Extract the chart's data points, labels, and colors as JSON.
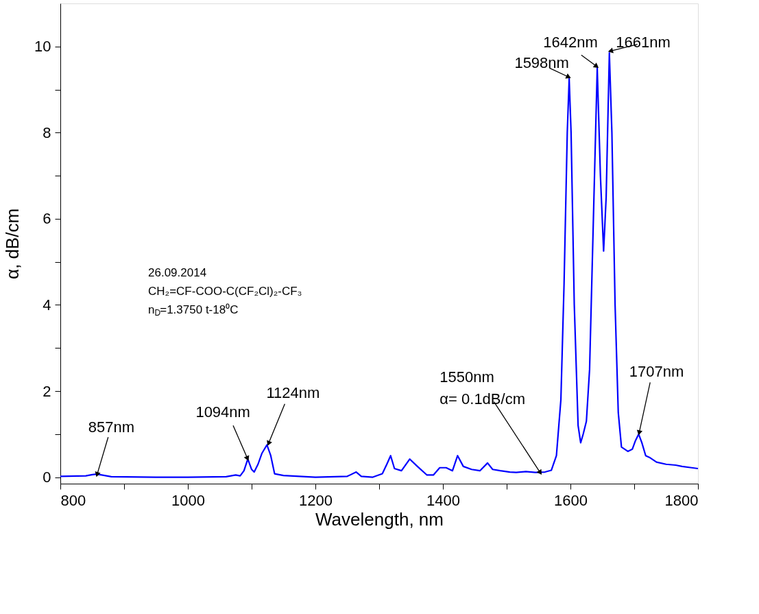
{
  "chart_data": {
    "type": "line",
    "xlabel": "Wavelength, nm",
    "ylabel": "α, dB/cm",
    "x": [
      800,
      840,
      850,
      857,
      865,
      880,
      950,
      1000,
      1060,
      1075,
      1082,
      1088,
      1094,
      1100,
      1104,
      1110,
      1116,
      1124,
      1130,
      1136,
      1150,
      1200,
      1250,
      1264,
      1272,
      1290,
      1305,
      1312,
      1318,
      1324,
      1335,
      1348,
      1360,
      1375,
      1385,
      1395,
      1405,
      1415,
      1423,
      1432,
      1445,
      1458,
      1470,
      1478,
      1490,
      1505,
      1515,
      1530,
      1545,
      1560,
      1570,
      1578,
      1585,
      1590,
      1595,
      1598,
      1601,
      1606,
      1612,
      1616,
      1620,
      1625,
      1630,
      1636,
      1642,
      1647,
      1652,
      1656,
      1661,
      1665,
      1670,
      1675,
      1680,
      1690,
      1697,
      1702,
      1707,
      1712,
      1718,
      1725,
      1735,
      1750,
      1765,
      1775,
      1790,
      1800
    ],
    "series": [
      {
        "color": "#0000ff",
        "values": [
          0.02,
          0.03,
          0.06,
          0.07,
          0.05,
          0.01,
          0.0,
          0.0,
          0.01,
          0.05,
          0.03,
          0.15,
          0.42,
          0.18,
          0.12,
          0.3,
          0.55,
          0.75,
          0.5,
          0.08,
          0.04,
          0.0,
          0.02,
          0.12,
          0.02,
          0.0,
          0.08,
          0.3,
          0.5,
          0.2,
          0.15,
          0.42,
          0.25,
          0.05,
          0.05,
          0.22,
          0.22,
          0.15,
          0.5,
          0.25,
          0.18,
          0.15,
          0.33,
          0.18,
          0.15,
          0.12,
          0.11,
          0.13,
          0.11,
          0.12,
          0.16,
          0.5,
          1.8,
          4.5,
          8.0,
          9.25,
          8.0,
          4.0,
          1.2,
          0.8,
          1.0,
          1.3,
          2.5,
          6.0,
          9.5,
          7.0,
          5.25,
          6.5,
          9.85,
          8.0,
          4.0,
          1.5,
          0.7,
          0.6,
          0.65,
          0.85,
          1.0,
          0.8,
          0.5,
          0.45,
          0.35,
          0.3,
          0.28,
          0.25,
          0.22,
          0.2
        ]
      }
    ],
    "xlim": [
      800,
      1800
    ],
    "ylim": [
      -0.15,
      11
    ],
    "xticks": [
      800,
      {
        "value": 900,
        "label": null
      },
      1000,
      {
        "value": 1100,
        "label": null
      },
      1200,
      {
        "value": 1300,
        "label": null
      },
      1400,
      {
        "value": 1500,
        "label": null
      },
      1600,
      {
        "value": 1700,
        "label": null
      },
      1800
    ],
    "yticks": [
      0,
      {
        "value": 1,
        "label": null
      },
      2,
      {
        "value": 3,
        "label": null
      },
      4,
      {
        "value": 5,
        "label": null
      },
      6,
      {
        "value": 7,
        "label": null
      },
      8,
      {
        "value": 9,
        "label": null
      },
      10
    ],
    "grid": false,
    "marker": "none",
    "line_style": "solid",
    "annotations": [
      {
        "text": "857nm",
        "x": 858,
        "y": 0.08
      },
      {
        "text": "1094nm",
        "x": 1093,
        "y": 0.45
      },
      {
        "text": "1124nm",
        "x": 1127,
        "y": 0.8
      },
      {
        "text": "1550nm\nα= 0.1dB/cm",
        "x": 1552,
        "y": 0.12
      },
      {
        "text": "1598nm",
        "x": 1596,
        "y": 9.3
      },
      {
        "text": "1642nm",
        "x": 1640,
        "y": 9.55
      },
      {
        "text": "1661nm",
        "x": 1664,
        "y": 9.9
      },
      {
        "text": "1707nm",
        "x": 1708,
        "y": 1.05
      },
      "26.09.2014\nCH₂=CF-COO-C(CF₂Cl)₂-CF₃\nn$_{D}$=1.3750 t-18⁰C"
    ]
  }
}
